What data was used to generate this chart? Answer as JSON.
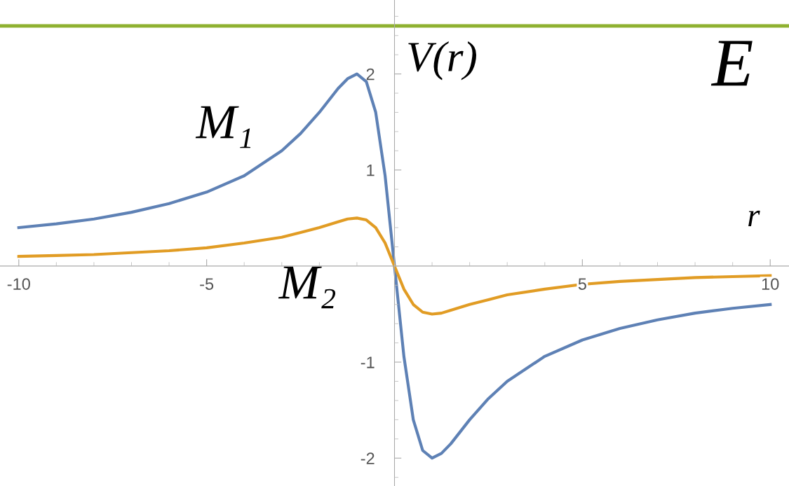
{
  "chart_data": {
    "type": "line",
    "xlabel": "r",
    "ylabel": "V(r)",
    "x": [
      -10,
      -9,
      -8,
      -7,
      -6,
      -5,
      -4,
      -3,
      -2.5,
      -2,
      -1.5,
      -1.25,
      -1,
      -0.75,
      -0.5,
      -0.25,
      0,
      0.25,
      0.5,
      0.75,
      1,
      1.25,
      1.5,
      2,
      2.5,
      3,
      4,
      5,
      6,
      7,
      8,
      9,
      10
    ],
    "series": [
      {
        "color": "#5e81b5",
        "values": [
          0.4,
          0.44,
          0.49,
          0.56,
          0.65,
          0.77,
          0.94,
          1.2,
          1.38,
          1.6,
          1.85,
          1.95,
          2,
          1.92,
          1.6,
          0.94,
          0,
          -0.94,
          -1.6,
          -1.92,
          -2,
          -1.95,
          -1.85,
          -1.6,
          -1.38,
          -1.2,
          -0.94,
          -0.77,
          -0.65,
          -0.56,
          -0.49,
          -0.44,
          -0.4
        ]
      },
      {
        "color": "#e19c24",
        "values": [
          0.1,
          0.11,
          0.12,
          0.14,
          0.16,
          0.19,
          0.24,
          0.3,
          0.35,
          0.4,
          0.46,
          0.49,
          0.5,
          0.48,
          0.4,
          0.24,
          0,
          -0.24,
          -0.4,
          -0.48,
          -0.5,
          -0.49,
          -0.46,
          -0.4,
          -0.35,
          -0.3,
          -0.24,
          -0.19,
          -0.16,
          -0.14,
          -0.12,
          -0.11,
          -0.1
        ]
      }
    ],
    "ref_lines": [
      {
        "axis": "y",
        "value": 2.5,
        "label": "E",
        "color": "#8fb131"
      }
    ],
    "annotations": [
      "M₁",
      "M₂"
    ],
    "xlim": [
      -10.5,
      10.5
    ],
    "ylim": [
      -2.29,
      2.77
    ],
    "xticks": [
      -10,
      -5,
      5,
      10
    ],
    "yticks": [
      -2,
      -1,
      1,
      2
    ],
    "grid": false,
    "legend": false,
    "marker": "none",
    "line_style": "solid"
  }
}
